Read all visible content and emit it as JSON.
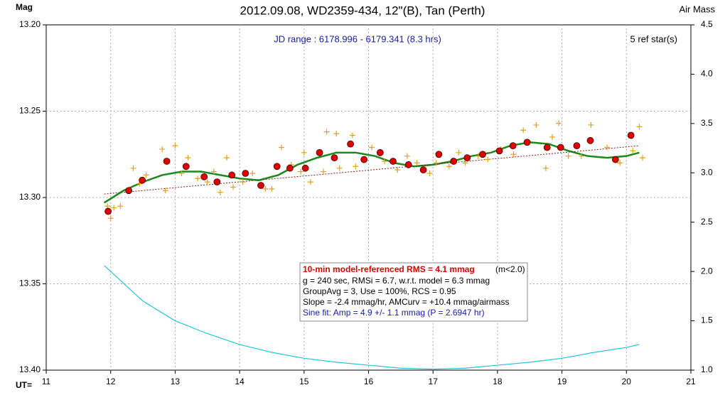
{
  "chart_data": {
    "type": "scatter",
    "title": "2012.09.08, WD2359-434, 12\"(B), Tan (Perth)",
    "y_label": "Mag",
    "y2_label": "Air Mass",
    "x_label": "UT=",
    "annotations": {
      "jd_range": "JD range : 6178.996 - 6179.341 (8.3 hrs)",
      "ref_stars": "5 ref star(s)",
      "rms_bold": "10-min model-referenced RMS = 4.1 mmag",
      "rms_note": "(m<2.0)",
      "line2": "g = 240  sec, RMSi = 6.7, w.r.t. model = 6.3 mmag",
      "line3": "GroupAvg  = 3, Use = 100%, RCS = 0.95",
      "line4": "Slope = -2.4  mmag/hr, AMCurv  = +10.4  mmag/airmass",
      "line5": "Sine fit: Amp = 4.9 +/- 1.1 mmag (P = 2.6947  hr)"
    },
    "xlim": [
      11,
      21
    ],
    "xticks": [
      11,
      12,
      13,
      14,
      15,
      16,
      17,
      18,
      19,
      20,
      21
    ],
    "ylim": [
      13.4,
      13.2
    ],
    "yticks": [
      {
        "value": 13.2,
        "label": "13.20"
      },
      13.25,
      {
        "value": 13.3,
        "label": "13.30"
      },
      13.35,
      {
        "value": 13.4,
        "label": "13.40"
      }
    ],
    "y2lim": [
      1.0,
      4.5
    ],
    "y2ticks": [
      {
        "value": 1.0,
        "label": "1.0"
      },
      1.5,
      {
        "value": 2.0,
        "label": "2.0"
      },
      2.5,
      {
        "value": 3.0,
        "label": "3.0"
      },
      3.5,
      {
        "value": 4.0,
        "label": "4.0"
      },
      4.5
    ],
    "grid": true,
    "series": [
      {
        "kind": "cross",
        "color": "#e0a020",
        "x": [
          11.95,
          12.0,
          12.05,
          12.15,
          12.35,
          12.45,
          12.55,
          12.8,
          12.85,
          13.0,
          13.1,
          13.2,
          13.35,
          13.5,
          13.6,
          13.7,
          13.8,
          13.9,
          14.05,
          14.2,
          14.4,
          14.5,
          14.65,
          14.8,
          14.95,
          15.0,
          15.1,
          15.3,
          15.35,
          15.5,
          15.55,
          15.75,
          15.8,
          16.05,
          16.25,
          16.45,
          16.6,
          16.75,
          16.95,
          17.05,
          17.25,
          17.4,
          17.5,
          17.7,
          17.85,
          18.05,
          18.25,
          18.4,
          18.6,
          18.75,
          18.85,
          18.95,
          19.1,
          19.3,
          19.45,
          19.7,
          19.9,
          20.1,
          20.2,
          20.25
        ],
        "values": [
          13.305,
          13.312,
          13.306,
          13.305,
          13.283,
          13.292,
          13.287,
          13.272,
          13.296,
          13.27,
          13.286,
          13.277,
          13.289,
          13.291,
          13.285,
          13.297,
          13.277,
          13.294,
          13.291,
          13.286,
          13.295,
          13.295,
          13.271,
          13.281,
          13.285,
          13.274,
          13.291,
          13.285,
          13.262,
          13.263,
          13.283,
          13.264,
          13.282,
          13.271,
          13.279,
          13.284,
          13.276,
          13.28,
          13.286,
          13.28,
          13.282,
          13.274,
          13.28,
          13.276,
          13.278,
          13.272,
          13.275,
          13.261,
          13.258,
          13.283,
          13.265,
          13.257,
          13.276,
          13.276,
          13.258,
          13.271,
          13.28,
          13.273,
          13.259,
          13.277
        ]
      },
      {
        "kind": "dot",
        "color": "#dd0000",
        "x": [
          11.96,
          12.28,
          12.49,
          12.87,
          13.17,
          13.45,
          13.65,
          13.88,
          14.09,
          14.33,
          14.58,
          14.78,
          15.02,
          15.24,
          15.47,
          15.72,
          15.93,
          16.18,
          16.38,
          16.62,
          16.85,
          17.09,
          17.32,
          17.53,
          17.77,
          18.03,
          18.24,
          18.46,
          18.77,
          18.98,
          19.23,
          19.44,
          19.83,
          20.07
        ],
        "values": [
          13.308,
          13.296,
          13.29,
          13.279,
          13.282,
          13.288,
          13.291,
          13.287,
          13.286,
          13.293,
          13.282,
          13.283,
          13.283,
          13.274,
          13.277,
          13.269,
          13.278,
          13.274,
          13.279,
          13.281,
          13.284,
          13.275,
          13.279,
          13.277,
          13.275,
          13.273,
          13.27,
          13.268,
          13.271,
          13.271,
          13.27,
          13.267,
          13.278,
          13.264
        ]
      },
      {
        "kind": "line",
        "color": "#1a8a1a",
        "x": [
          11.9,
          12.2,
          12.5,
          12.8,
          13.1,
          13.4,
          13.7,
          14.0,
          14.3,
          14.6,
          14.9,
          15.2,
          15.5,
          15.8,
          16.1,
          16.4,
          16.7,
          17.0,
          17.3,
          17.6,
          17.9,
          18.2,
          18.5,
          18.8,
          19.1,
          19.4,
          19.7,
          20.0,
          20.2
        ],
        "values": [
          13.303,
          13.296,
          13.291,
          13.287,
          13.285,
          13.285,
          13.287,
          13.289,
          13.29,
          13.287,
          13.281,
          13.277,
          13.274,
          13.274,
          13.276,
          13.28,
          13.282,
          13.281,
          13.279,
          13.276,
          13.274,
          13.27,
          13.268,
          13.269,
          13.273,
          13.276,
          13.277,
          13.276,
          13.274
        ]
      },
      {
        "kind": "dotted",
        "color": "#8b1a1a",
        "x": [
          11.9,
          20.2
        ],
        "values": [
          13.298,
          13.27
        ]
      },
      {
        "kind": "line",
        "axis": "y2",
        "color": "#22c4dd",
        "x": [
          11.9,
          12.5,
          13.0,
          13.5,
          14.0,
          14.5,
          15.0,
          15.5,
          16.0,
          16.5,
          17.0,
          17.5,
          18.0,
          18.5,
          19.0,
          19.5,
          20.0,
          20.2
        ],
        "values": [
          2.06,
          1.7,
          1.5,
          1.37,
          1.26,
          1.18,
          1.12,
          1.08,
          1.05,
          1.02,
          1.01,
          1.02,
          1.05,
          1.08,
          1.12,
          1.18,
          1.23,
          1.26
        ]
      }
    ]
  }
}
